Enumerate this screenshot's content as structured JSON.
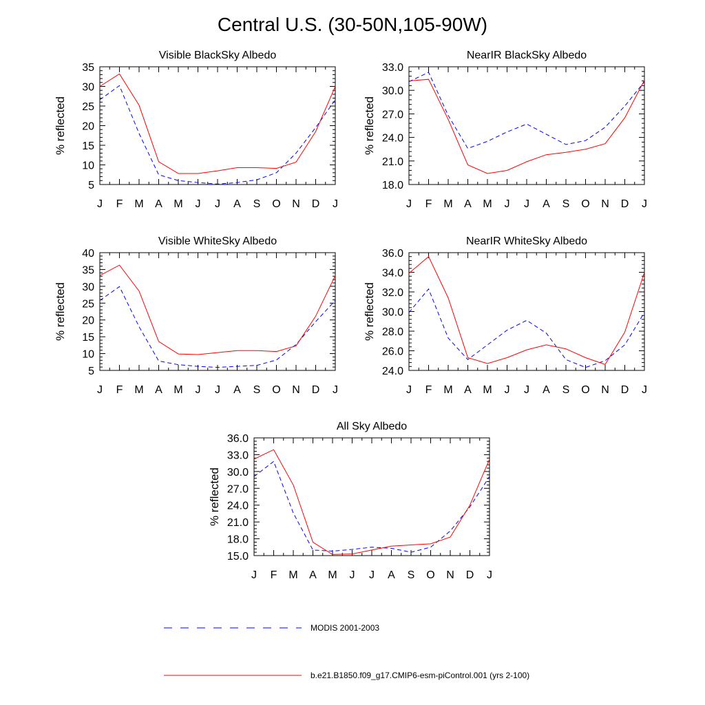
{
  "title": "Central U.S. (30-50N,105-90W)",
  "colors": {
    "modis": "#0000ff",
    "model": "#ff0000",
    "axis": "#000000"
  },
  "legend": {
    "modis_label": "MODIS 2001-2003",
    "model_label": "b.e21.B1850.f09_g17.CMIP6-esm-piControl.001 (yrs 2-100)"
  },
  "chart_data": [
    {
      "type": "line",
      "title": "Visible BlackSky Albedo",
      "xlabel": "",
      "ylabel": "% reflected",
      "categories": [
        "J",
        "F",
        "M",
        "A",
        "M",
        "J",
        "J",
        "A",
        "S",
        "O",
        "N",
        "D",
        "J"
      ],
      "ylim": [
        5,
        35
      ],
      "yticks": [
        "5",
        "10",
        "15",
        "20",
        "25",
        "30",
        "35"
      ],
      "series": [
        {
          "name": "MODIS 2001-2003",
          "style": "dashed",
          "values": [
            26.6,
            30.2,
            18.0,
            7.5,
            6.0,
            5.5,
            5.1,
            5.5,
            6.2,
            8.0,
            13.0,
            19.5,
            26.6
          ]
        },
        {
          "name": "b.e21.B1850.f09_g17.CMIP6-esm-piControl.001 (yrs 2-100)",
          "style": "solid",
          "values": [
            30.0,
            33.2,
            25.2,
            10.8,
            7.8,
            7.8,
            8.5,
            9.3,
            9.3,
            9.1,
            10.7,
            18.5,
            30.0
          ]
        }
      ]
    },
    {
      "type": "line",
      "title": "NearIR BlackSky Albedo",
      "xlabel": "",
      "ylabel": "% reflected",
      "categories": [
        "J",
        "F",
        "M",
        "A",
        "M",
        "J",
        "J",
        "A",
        "S",
        "O",
        "N",
        "D",
        "J"
      ],
      "ylim": [
        18,
        33
      ],
      "yticks": [
        "18.0",
        "21.0",
        "24.0",
        "27.0",
        "30.0",
        "33.0"
      ],
      "series": [
        {
          "name": "MODIS 2001-2003",
          "style": "dashed",
          "values": [
            31.1,
            32.3,
            26.8,
            22.6,
            23.5,
            24.7,
            25.7,
            24.4,
            23.1,
            23.6,
            25.3,
            28.0,
            31.1
          ]
        },
        {
          "name": "b.e21.B1850.f09_g17.CMIP6-esm-piControl.001 (yrs 2-100)",
          "style": "solid",
          "values": [
            31.2,
            31.4,
            26.3,
            20.5,
            19.4,
            19.8,
            20.9,
            21.8,
            22.1,
            22.5,
            23.2,
            26.5,
            31.3
          ]
        }
      ]
    },
    {
      "type": "line",
      "title": "Visible WhiteSky Albedo",
      "xlabel": "",
      "ylabel": "% reflected",
      "categories": [
        "J",
        "F",
        "M",
        "A",
        "M",
        "J",
        "J",
        "A",
        "S",
        "O",
        "N",
        "D",
        "J"
      ],
      "ylim": [
        5,
        40
      ],
      "yticks": [
        "5",
        "10",
        "15",
        "20",
        "25",
        "30",
        "35",
        "40"
      ],
      "series": [
        {
          "name": "MODIS 2001-2003",
          "style": "dashed",
          "values": [
            25.8,
            29.9,
            18.0,
            7.8,
            6.7,
            6.2,
            5.9,
            6.2,
            6.5,
            8.1,
            12.7,
            19.5,
            25.8
          ]
        },
        {
          "name": "b.e21.B1850.f09_g17.CMIP6-esm-piControl.001 (yrs 2-100)",
          "style": "solid",
          "values": [
            33.2,
            36.3,
            28.6,
            13.6,
            9.9,
            9.7,
            10.3,
            10.9,
            10.9,
            10.6,
            12.3,
            21.1,
            33.2
          ]
        }
      ]
    },
    {
      "type": "line",
      "title": "NearIR WhiteSky Albedo",
      "xlabel": "",
      "ylabel": "% reflected",
      "categories": [
        "J",
        "F",
        "M",
        "A",
        "M",
        "J",
        "J",
        "A",
        "S",
        "O",
        "N",
        "D",
        "J"
      ],
      "ylim": [
        24,
        36
      ],
      "yticks": [
        "24.0",
        "26.0",
        "28.0",
        "30.0",
        "32.0",
        "34.0",
        "36.0"
      ],
      "series": [
        {
          "name": "MODIS 2001-2003",
          "style": "dashed",
          "values": [
            29.9,
            32.3,
            27.3,
            25.1,
            26.6,
            28.1,
            29.1,
            27.8,
            25.1,
            24.3,
            25.0,
            26.6,
            29.9
          ]
        },
        {
          "name": "b.e21.B1850.f09_g17.CMIP6-esm-piControl.001 (yrs 2-100)",
          "style": "solid",
          "values": [
            33.9,
            35.6,
            31.4,
            25.3,
            24.7,
            25.3,
            26.1,
            26.6,
            26.2,
            25.3,
            24.6,
            27.9,
            34.0
          ]
        }
      ]
    },
    {
      "type": "line",
      "title": "All Sky Albedo",
      "xlabel": "",
      "ylabel": "% reflected",
      "categories": [
        "J",
        "F",
        "M",
        "A",
        "M",
        "J",
        "J",
        "A",
        "S",
        "O",
        "N",
        "D",
        "J"
      ],
      "ylim": [
        15,
        36
      ],
      "yticks": [
        "15.0",
        "18.0",
        "21.0",
        "24.0",
        "27.0",
        "30.0",
        "33.0",
        "36.0"
      ],
      "series": [
        {
          "name": "MODIS 2001-2003",
          "style": "dashed",
          "values": [
            29.1,
            31.8,
            22.6,
            16.0,
            15.8,
            16.1,
            16.5,
            16.3,
            15.6,
            16.5,
            19.4,
            23.7,
            29.1
          ]
        },
        {
          "name": "b.e21.B1850.f09_g17.CMIP6-esm-piControl.001 (yrs 2-100)",
          "style": "solid",
          "values": [
            32.2,
            33.9,
            27.6,
            17.4,
            15.2,
            15.3,
            16.0,
            16.7,
            16.9,
            17.1,
            18.3,
            24.0,
            32.2
          ]
        }
      ]
    }
  ]
}
